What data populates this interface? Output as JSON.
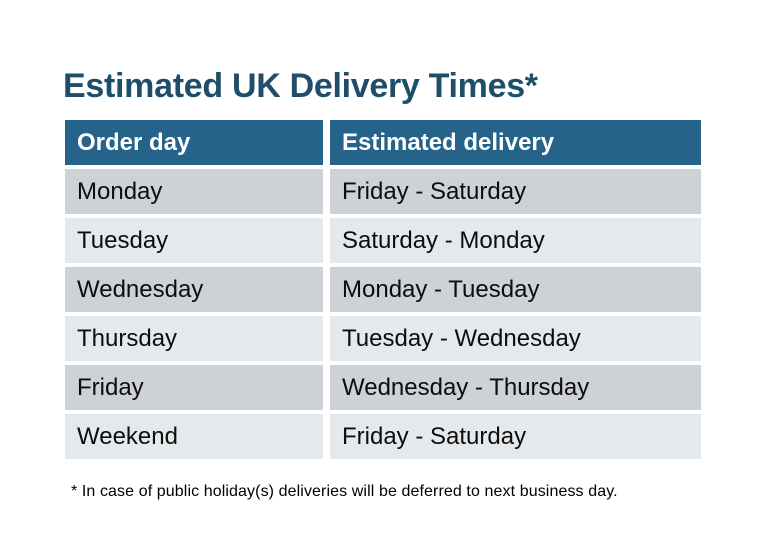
{
  "page": {
    "title": "Estimated UK Delivery Times*",
    "footnote": "* In case of public holiday(s) deliveries will be deferred to next business day."
  },
  "table": {
    "headers": {
      "order_day": "Order day",
      "delivery": "Estimated delivery"
    },
    "rows": [
      {
        "order_day": "Monday",
        "delivery": "Friday - Saturday"
      },
      {
        "order_day": "Tuesday",
        "delivery": "Saturday - Monday"
      },
      {
        "order_day": "Wednesday",
        "delivery": "Monday - Tuesday"
      },
      {
        "order_day": "Thursday",
        "delivery": "Tuesday - Wednesday"
      },
      {
        "order_day": "Friday",
        "delivery": "Wednesday - Thursday"
      },
      {
        "order_day": "Weekend",
        "delivery": "Friday - Saturday"
      }
    ]
  },
  "colors": {
    "header_bg": "#25638A",
    "title_text": "#1F4E6A",
    "row_dark": "#CED1D6",
    "row_light": "#E6E9EC"
  }
}
